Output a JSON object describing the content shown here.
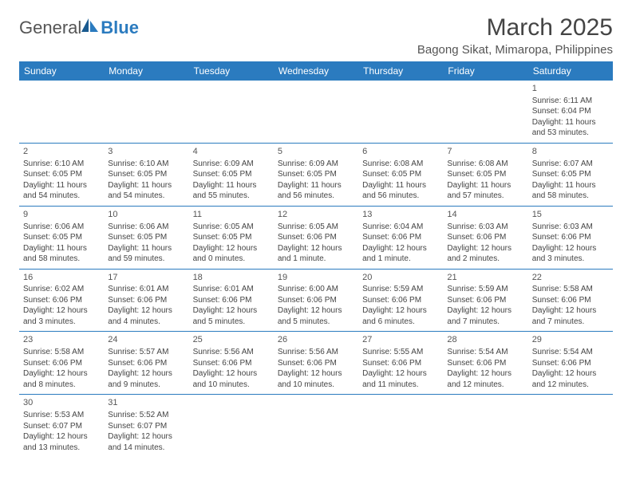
{
  "logo": {
    "part1": "General",
    "part2": "Blue"
  },
  "title": "March 2025",
  "location": "Bagong Sikat, Mimaropa, Philippines",
  "header_bg": "#2b7bbf",
  "weekdays": [
    "Sunday",
    "Monday",
    "Tuesday",
    "Wednesday",
    "Thursday",
    "Friday",
    "Saturday"
  ],
  "cells": [
    null,
    null,
    null,
    null,
    null,
    null,
    {
      "d": "1",
      "r": "6:11 AM",
      "s": "6:04 PM",
      "l": "11 hours and 53 minutes."
    },
    {
      "d": "2",
      "r": "6:10 AM",
      "s": "6:05 PM",
      "l": "11 hours and 54 minutes."
    },
    {
      "d": "3",
      "r": "6:10 AM",
      "s": "6:05 PM",
      "l": "11 hours and 54 minutes."
    },
    {
      "d": "4",
      "r": "6:09 AM",
      "s": "6:05 PM",
      "l": "11 hours and 55 minutes."
    },
    {
      "d": "5",
      "r": "6:09 AM",
      "s": "6:05 PM",
      "l": "11 hours and 56 minutes."
    },
    {
      "d": "6",
      "r": "6:08 AM",
      "s": "6:05 PM",
      "l": "11 hours and 56 minutes."
    },
    {
      "d": "7",
      "r": "6:08 AM",
      "s": "6:05 PM",
      "l": "11 hours and 57 minutes."
    },
    {
      "d": "8",
      "r": "6:07 AM",
      "s": "6:05 PM",
      "l": "11 hours and 58 minutes."
    },
    {
      "d": "9",
      "r": "6:06 AM",
      "s": "6:05 PM",
      "l": "11 hours and 58 minutes."
    },
    {
      "d": "10",
      "r": "6:06 AM",
      "s": "6:05 PM",
      "l": "11 hours and 59 minutes."
    },
    {
      "d": "11",
      "r": "6:05 AM",
      "s": "6:05 PM",
      "l": "12 hours and 0 minutes."
    },
    {
      "d": "12",
      "r": "6:05 AM",
      "s": "6:06 PM",
      "l": "12 hours and 1 minute."
    },
    {
      "d": "13",
      "r": "6:04 AM",
      "s": "6:06 PM",
      "l": "12 hours and 1 minute."
    },
    {
      "d": "14",
      "r": "6:03 AM",
      "s": "6:06 PM",
      "l": "12 hours and 2 minutes."
    },
    {
      "d": "15",
      "r": "6:03 AM",
      "s": "6:06 PM",
      "l": "12 hours and 3 minutes."
    },
    {
      "d": "16",
      "r": "6:02 AM",
      "s": "6:06 PM",
      "l": "12 hours and 3 minutes."
    },
    {
      "d": "17",
      "r": "6:01 AM",
      "s": "6:06 PM",
      "l": "12 hours and 4 minutes."
    },
    {
      "d": "18",
      "r": "6:01 AM",
      "s": "6:06 PM",
      "l": "12 hours and 5 minutes."
    },
    {
      "d": "19",
      "r": "6:00 AM",
      "s": "6:06 PM",
      "l": "12 hours and 5 minutes."
    },
    {
      "d": "20",
      "r": "5:59 AM",
      "s": "6:06 PM",
      "l": "12 hours and 6 minutes."
    },
    {
      "d": "21",
      "r": "5:59 AM",
      "s": "6:06 PM",
      "l": "12 hours and 7 minutes."
    },
    {
      "d": "22",
      "r": "5:58 AM",
      "s": "6:06 PM",
      "l": "12 hours and 7 minutes."
    },
    {
      "d": "23",
      "r": "5:58 AM",
      "s": "6:06 PM",
      "l": "12 hours and 8 minutes."
    },
    {
      "d": "24",
      "r": "5:57 AM",
      "s": "6:06 PM",
      "l": "12 hours and 9 minutes."
    },
    {
      "d": "25",
      "r": "5:56 AM",
      "s": "6:06 PM",
      "l": "12 hours and 10 minutes."
    },
    {
      "d": "26",
      "r": "5:56 AM",
      "s": "6:06 PM",
      "l": "12 hours and 10 minutes."
    },
    {
      "d": "27",
      "r": "5:55 AM",
      "s": "6:06 PM",
      "l": "12 hours and 11 minutes."
    },
    {
      "d": "28",
      "r": "5:54 AM",
      "s": "6:06 PM",
      "l": "12 hours and 12 minutes."
    },
    {
      "d": "29",
      "r": "5:54 AM",
      "s": "6:06 PM",
      "l": "12 hours and 12 minutes."
    },
    {
      "d": "30",
      "r": "5:53 AM",
      "s": "6:07 PM",
      "l": "12 hours and 13 minutes."
    },
    {
      "d": "31",
      "r": "5:52 AM",
      "s": "6:07 PM",
      "l": "12 hours and 14 minutes."
    },
    null,
    null,
    null,
    null,
    null
  ],
  "labels": {
    "sunrise": "Sunrise:",
    "sunset": "Sunset:",
    "daylight": "Daylight:"
  }
}
